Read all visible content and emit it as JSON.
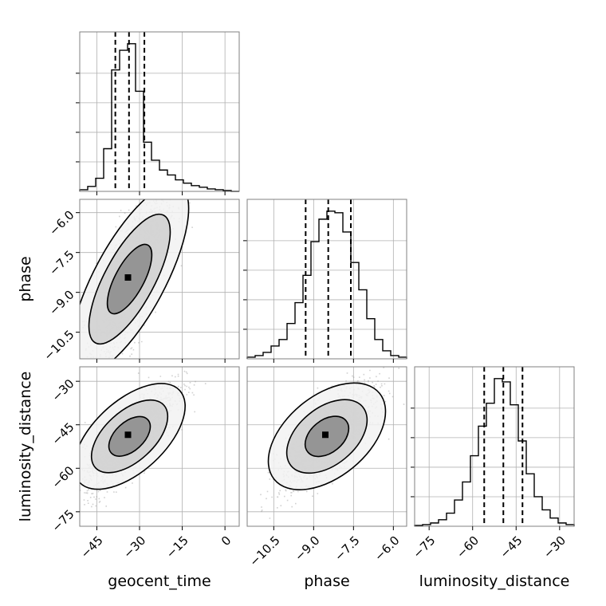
{
  "chart_data": {
    "type": "corner",
    "parameters": [
      {
        "name": "geocent_time",
        "label": "geocent_time",
        "range": [
          -51,
          5
        ],
        "ticks": [
          -45,
          -30,
          -15,
          0
        ],
        "tick_labels": [
          "−45",
          "−30",
          "−15",
          "0"
        ],
        "quantiles": [
          -38.5,
          -33.7,
          -28.3
        ]
      },
      {
        "name": "phase",
        "label": "phase",
        "range": [
          -11.5,
          -5.5
        ],
        "ticks": [
          -10.5,
          -9.0,
          -7.5,
          -6.0
        ],
        "tick_labels": [
          "−10.5",
          "−9.0",
          "−7.5",
          "−6.0"
        ],
        "quantiles": [
          -9.3,
          -8.45,
          -7.6
        ]
      },
      {
        "name": "luminosity_distance",
        "label": "luminosity_distance",
        "range": [
          -80,
          -25
        ],
        "ticks": [
          -75,
          -60,
          -45,
          -30
        ],
        "tick_labels": [
          "−75",
          "−60",
          "−45",
          "−30"
        ],
        "quantiles": [
          -56,
          -49.4,
          -42.8
        ]
      }
    ],
    "histograms": [
      {
        "parameter": "geocent_time",
        "bins": [
          -51,
          -48.2,
          -45.4,
          -42.6,
          -39.8,
          -37,
          -34.2,
          -31.4,
          -28.6,
          -25.8,
          -23,
          -20.2,
          -17.4,
          -14.6,
          -11.8,
          -9,
          -6.2,
          -3.4,
          -0.6,
          2.2,
          5
        ],
        "counts": [
          0.01,
          0.03,
          0.08,
          0.26,
          0.74,
          0.86,
          0.9,
          0.61,
          0.3,
          0.19,
          0.13,
          0.1,
          0.07,
          0.05,
          0.035,
          0.025,
          0.015,
          0.01,
          0.005,
          0.0
        ]
      },
      {
        "parameter": "phase",
        "bins": [
          -11.5,
          -11.2,
          -10.9,
          -10.6,
          -10.3,
          -10,
          -9.7,
          -9.4,
          -9.1,
          -8.8,
          -8.5,
          -8.2,
          -7.9,
          -7.6,
          -7.3,
          -7,
          -6.7,
          -6.4,
          -6.1,
          -5.8,
          -5.5
        ],
        "counts": [
          0.01,
          0.02,
          0.04,
          0.08,
          0.12,
          0.22,
          0.35,
          0.52,
          0.73,
          0.87,
          0.92,
          0.91,
          0.79,
          0.6,
          0.43,
          0.25,
          0.12,
          0.05,
          0.02,
          0.01
        ]
      },
      {
        "parameter": "luminosity_distance",
        "bins": [
          -80,
          -77.25,
          -74.5,
          -71.75,
          -69,
          -66.25,
          -63.5,
          -60.75,
          -58,
          -55.25,
          -52.5,
          -49.75,
          -47,
          -44.25,
          -41.5,
          -38.75,
          -36,
          -33.25,
          -30.5,
          -27.75,
          -25
        ],
        "counts": [
          0.005,
          0.01,
          0.02,
          0.04,
          0.08,
          0.16,
          0.27,
          0.43,
          0.61,
          0.75,
          0.9,
          0.88,
          0.74,
          0.52,
          0.32,
          0.18,
          0.1,
          0.05,
          0.02,
          0.01
        ]
      }
    ],
    "pairs": [
      {
        "x": "geocent_time",
        "y": "phase",
        "center": [
          -33.5,
          -8.5
        ],
        "scatter": [
          8,
          2
        ],
        "correlation": 0.8
      },
      {
        "x": "geocent_time",
        "y": "luminosity_distance",
        "center": [
          -33.5,
          -49
        ],
        "scatter": [
          8,
          9
        ],
        "correlation": 0.8
      },
      {
        "x": "phase",
        "y": "luminosity_distance",
        "center": [
          -8.5,
          -49
        ],
        "scatter": [
          0.9,
          9
        ],
        "correlation": 0.75
      }
    ],
    "grid": true
  }
}
